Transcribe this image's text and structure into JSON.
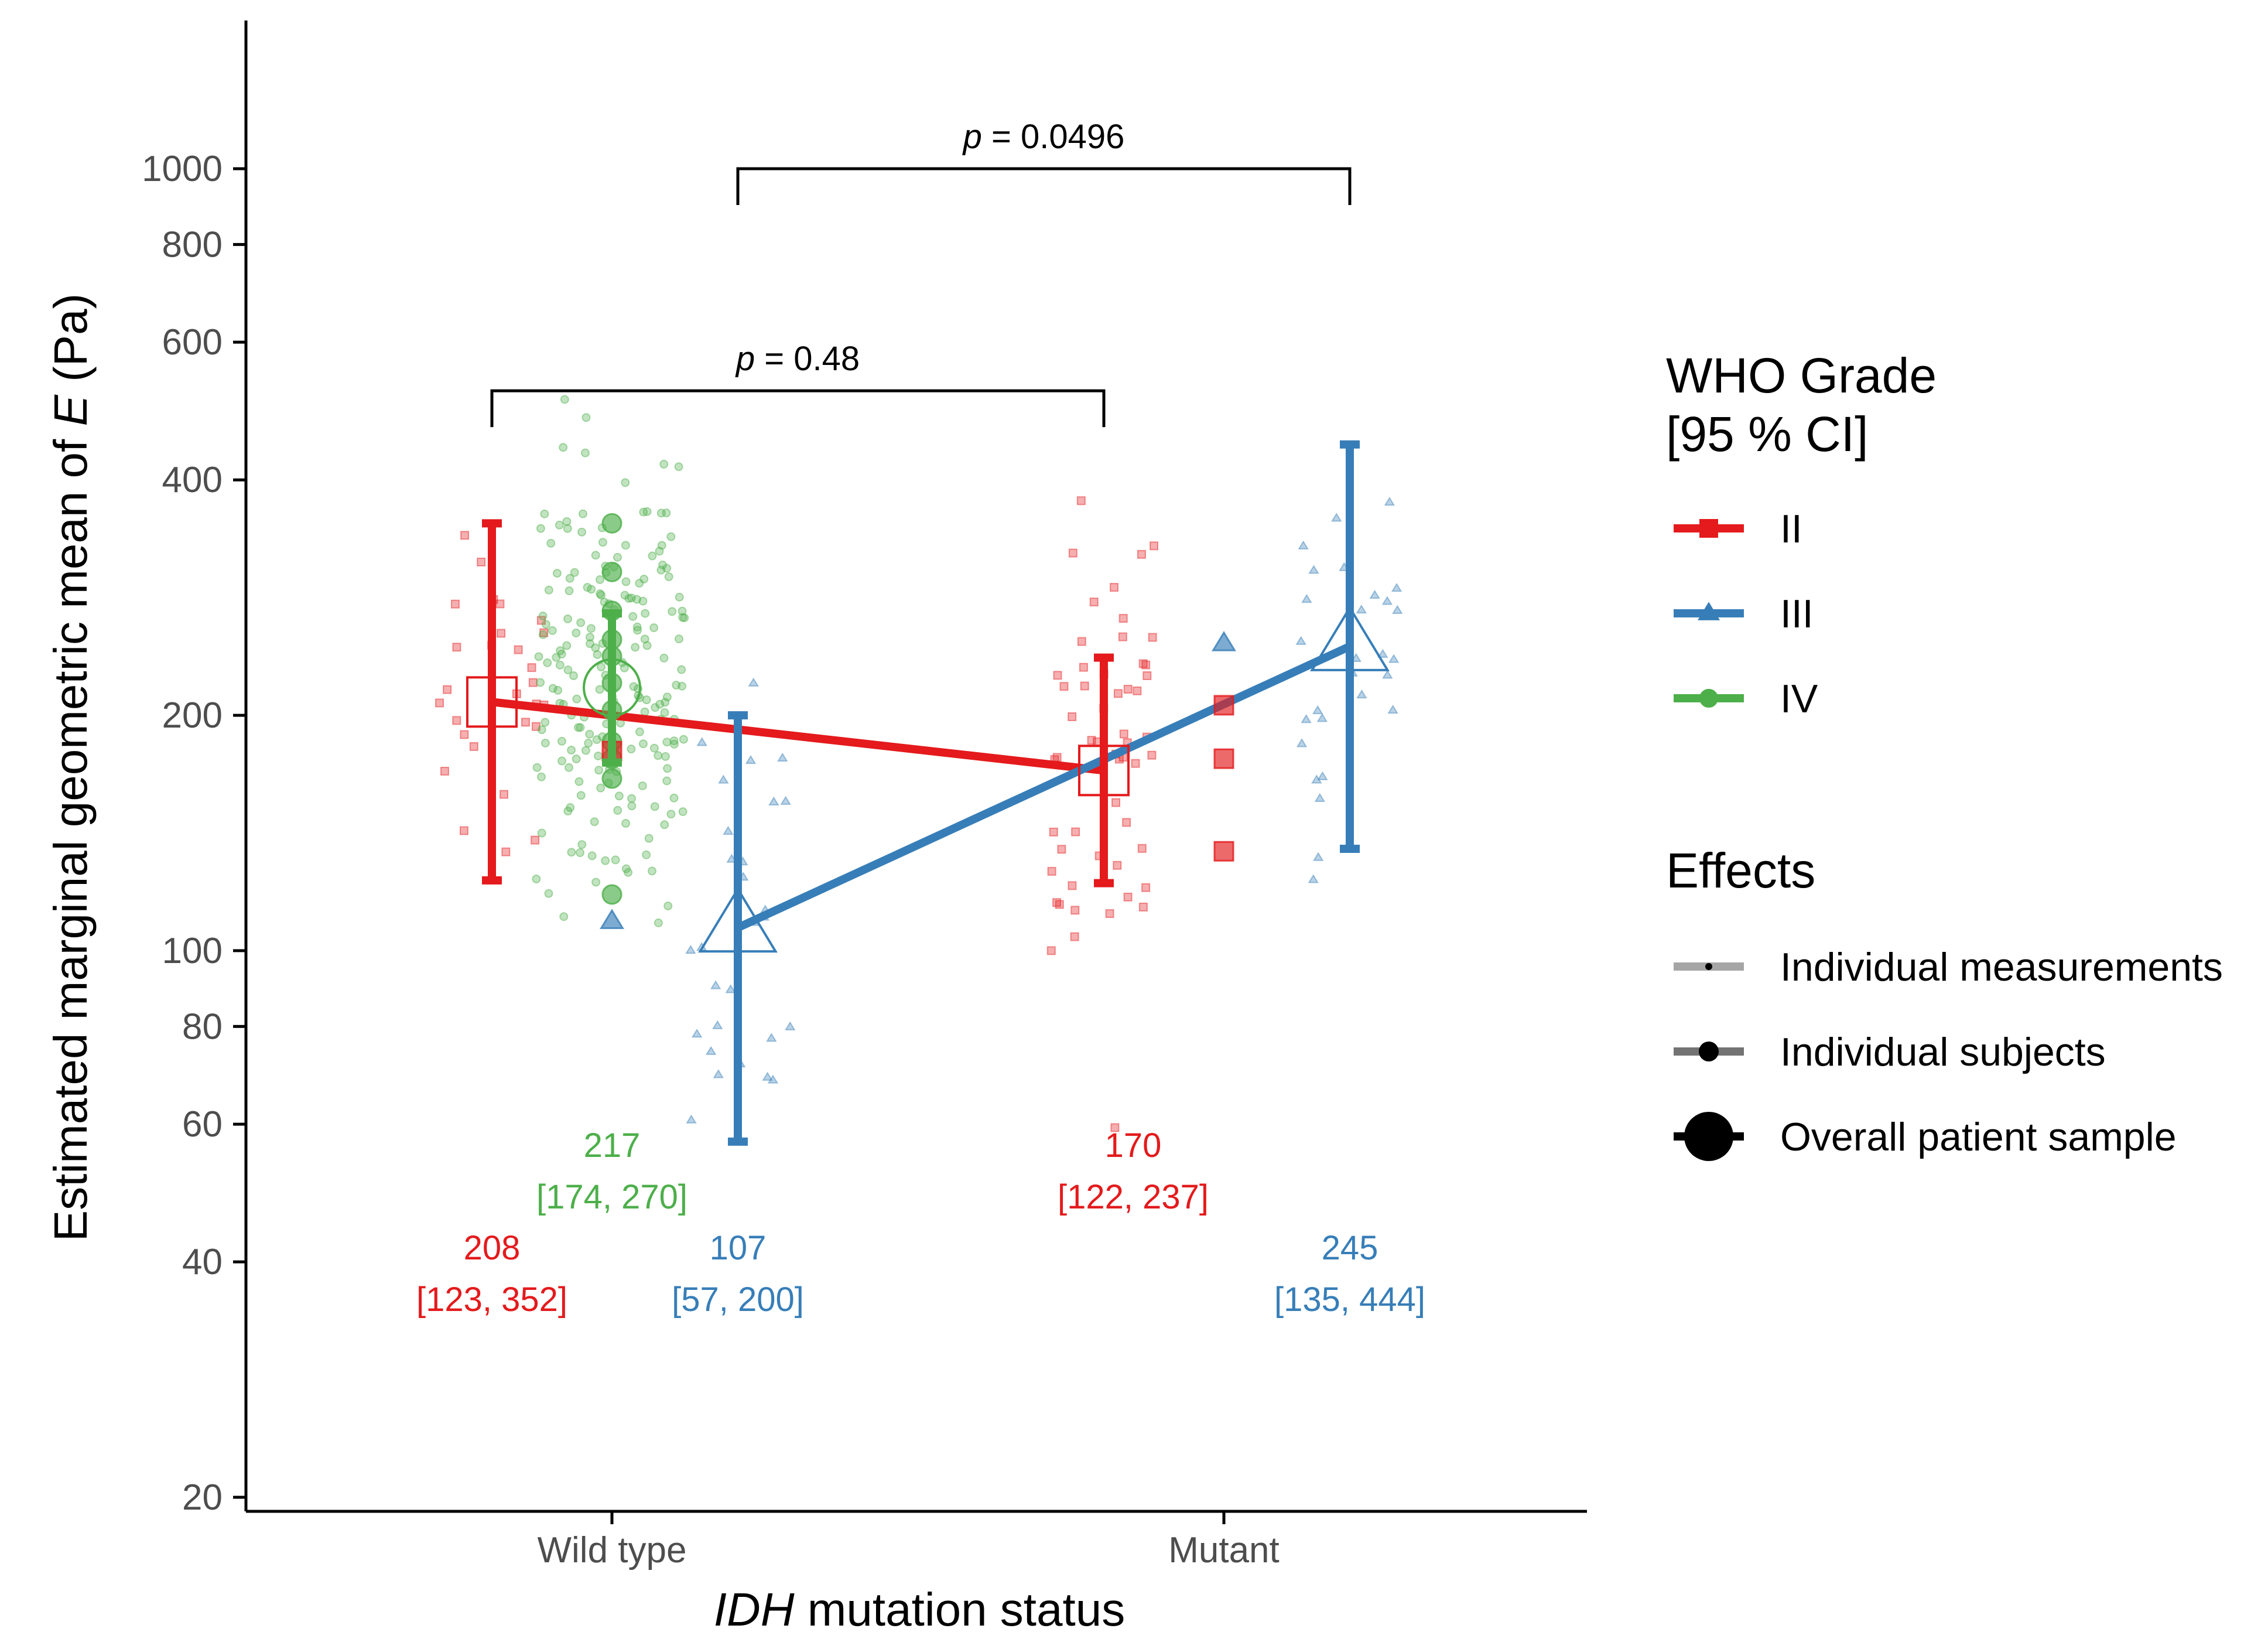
{
  "chart_data": {
    "type": "scatter",
    "y_scale": "log",
    "ylim": [
      20,
      1300
    ],
    "yticks": [
      20,
      40,
      60,
      80,
      100,
      200,
      400,
      600,
      800,
      1000
    ],
    "categories": [
      "Wild type",
      "Mutant"
    ],
    "xlabel_italic": "IDH",
    "xlabel_rest": " mutation status",
    "ylabel_prefix": "Estimated marginal geometric mean of ",
    "ylabel_italic": "E",
    "ylabel_suffix": " (Pa)",
    "colors": {
      "II": "#e41a1c",
      "III": "#377eb8",
      "IV": "#4daf4a"
    },
    "series": [
      {
        "name": "II",
        "marker": "square",
        "estimates": [
          {
            "category": "Wild type",
            "mean": 208,
            "ci": [
              123,
              352
            ],
            "mean_label": "208",
            "ci_label": "[123, 352]"
          },
          {
            "category": "Mutant",
            "mean": 170,
            "ci": [
              122,
              237
            ],
            "mean_label": "170",
            "ci_label": "[122, 237]"
          }
        ]
      },
      {
        "name": "III",
        "marker": "triangle",
        "estimates": [
          {
            "category": "Wild type",
            "mean": 107,
            "ci": [
              57,
              200
            ],
            "mean_label": "107",
            "ci_label": "[57, 200]"
          },
          {
            "category": "Mutant",
            "mean": 245,
            "ci": [
              135,
              444
            ],
            "mean_label": "245",
            "ci_label": "[135, 444]"
          }
        ]
      },
      {
        "name": "IV",
        "marker": "circle",
        "estimates": [
          {
            "category": "Wild type",
            "mean": 217,
            "ci": [
              174,
              270
            ],
            "mean_label": "217",
            "ci_label": "[174, 270]"
          }
        ]
      }
    ],
    "subjects": [
      {
        "grade": "IV",
        "category": "Wild type",
        "value": 352
      },
      {
        "grade": "IV",
        "category": "Wild type",
        "value": 305
      },
      {
        "grade": "IV",
        "category": "Wild type",
        "value": 272
      },
      {
        "grade": "IV",
        "category": "Wild type",
        "value": 250
      },
      {
        "grade": "IV",
        "category": "Wild type",
        "value": 238
      },
      {
        "grade": "IV",
        "category": "Wild type",
        "value": 220
      },
      {
        "grade": "IV",
        "category": "Wild type",
        "value": 203
      },
      {
        "grade": "IV",
        "category": "Wild type",
        "value": 185
      },
      {
        "grade": "IV",
        "category": "Wild type",
        "value": 176
      },
      {
        "grade": "IV",
        "category": "Wild type",
        "value": 166
      },
      {
        "grade": "IV",
        "category": "Wild type",
        "value": 118
      },
      {
        "grade": "II",
        "category": "Wild type",
        "value": 180
      },
      {
        "grade": "III",
        "category": "Wild type",
        "value": 109
      },
      {
        "grade": "II",
        "category": "Mutant",
        "value": 206
      },
      {
        "grade": "II",
        "category": "Mutant",
        "value": 176
      },
      {
        "grade": "II",
        "category": "Mutant",
        "value": 134
      },
      {
        "grade": "III",
        "category": "Mutant",
        "value": 247
      }
    ],
    "comparisons": [
      {
        "p_label": "p",
        "p_value_text": " = 0.48",
        "from": "II",
        "to": "II",
        "y": 520
      },
      {
        "p_label": "p",
        "p_value_text": " = 0.0496",
        "from": "III",
        "to": "III",
        "y": 1000
      }
    ],
    "legend": {
      "grade_title_line1": "WHO Grade",
      "grade_title_line2": "[95 % CI]",
      "grade_items": [
        "II",
        "III",
        "IV"
      ],
      "effects_title": "Effects",
      "effects_items": [
        "Individual measurements",
        "Individual subjects",
        "Overall patient sample"
      ]
    }
  }
}
